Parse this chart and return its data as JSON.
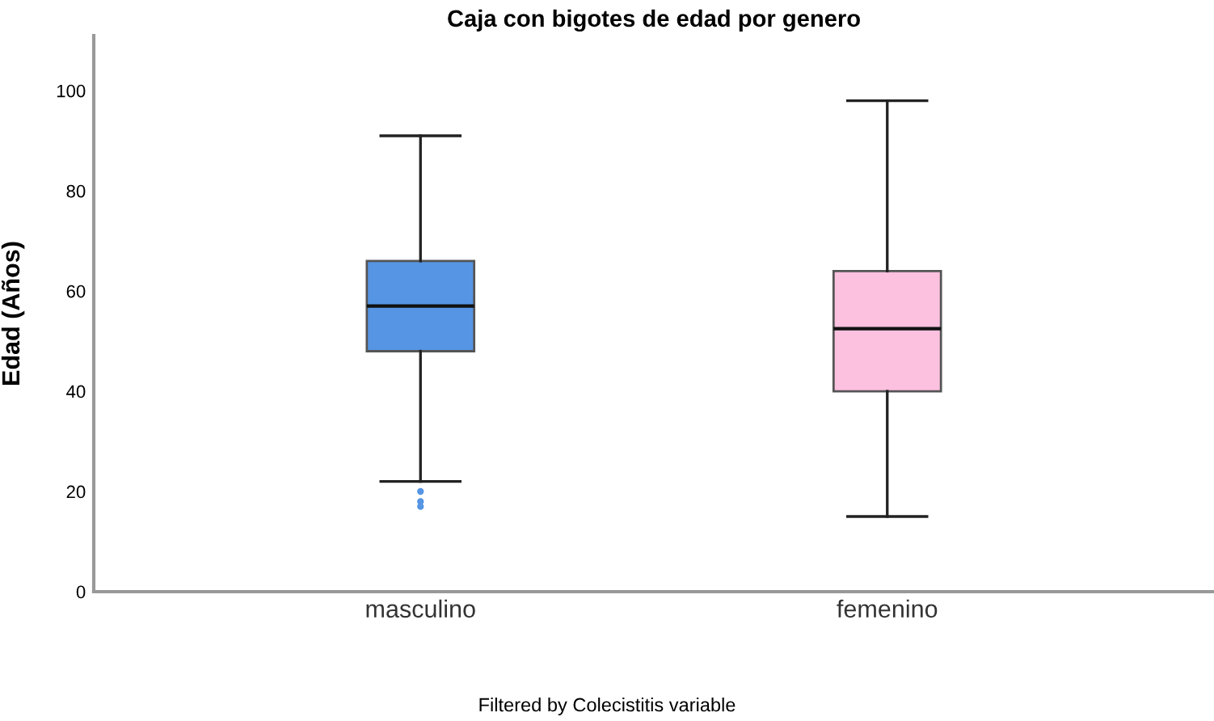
{
  "chart_data": {
    "type": "box",
    "title": "Caja con bigotes de edad por genero",
    "ylabel": "Edad (Años)",
    "categories": [
      "masculino",
      "femenino"
    ],
    "boxes": [
      {
        "low": 22,
        "q1": 48,
        "median": 57,
        "q3": 66,
        "high": 91,
        "outliers": [
          20,
          18,
          17
        ]
      },
      {
        "low": 15,
        "q1": 40,
        "median": 52.5,
        "q3": 64,
        "high": 98
      }
    ],
    "colors": [
      "#5595e3",
      "#fdc1e0"
    ],
    "ylim": [
      0,
      111
    ],
    "yticks": [
      0,
      20,
      40,
      60,
      80,
      100
    ],
    "grid": false,
    "annotations": [
      "Filtered by Colecistitis variable"
    ]
  }
}
